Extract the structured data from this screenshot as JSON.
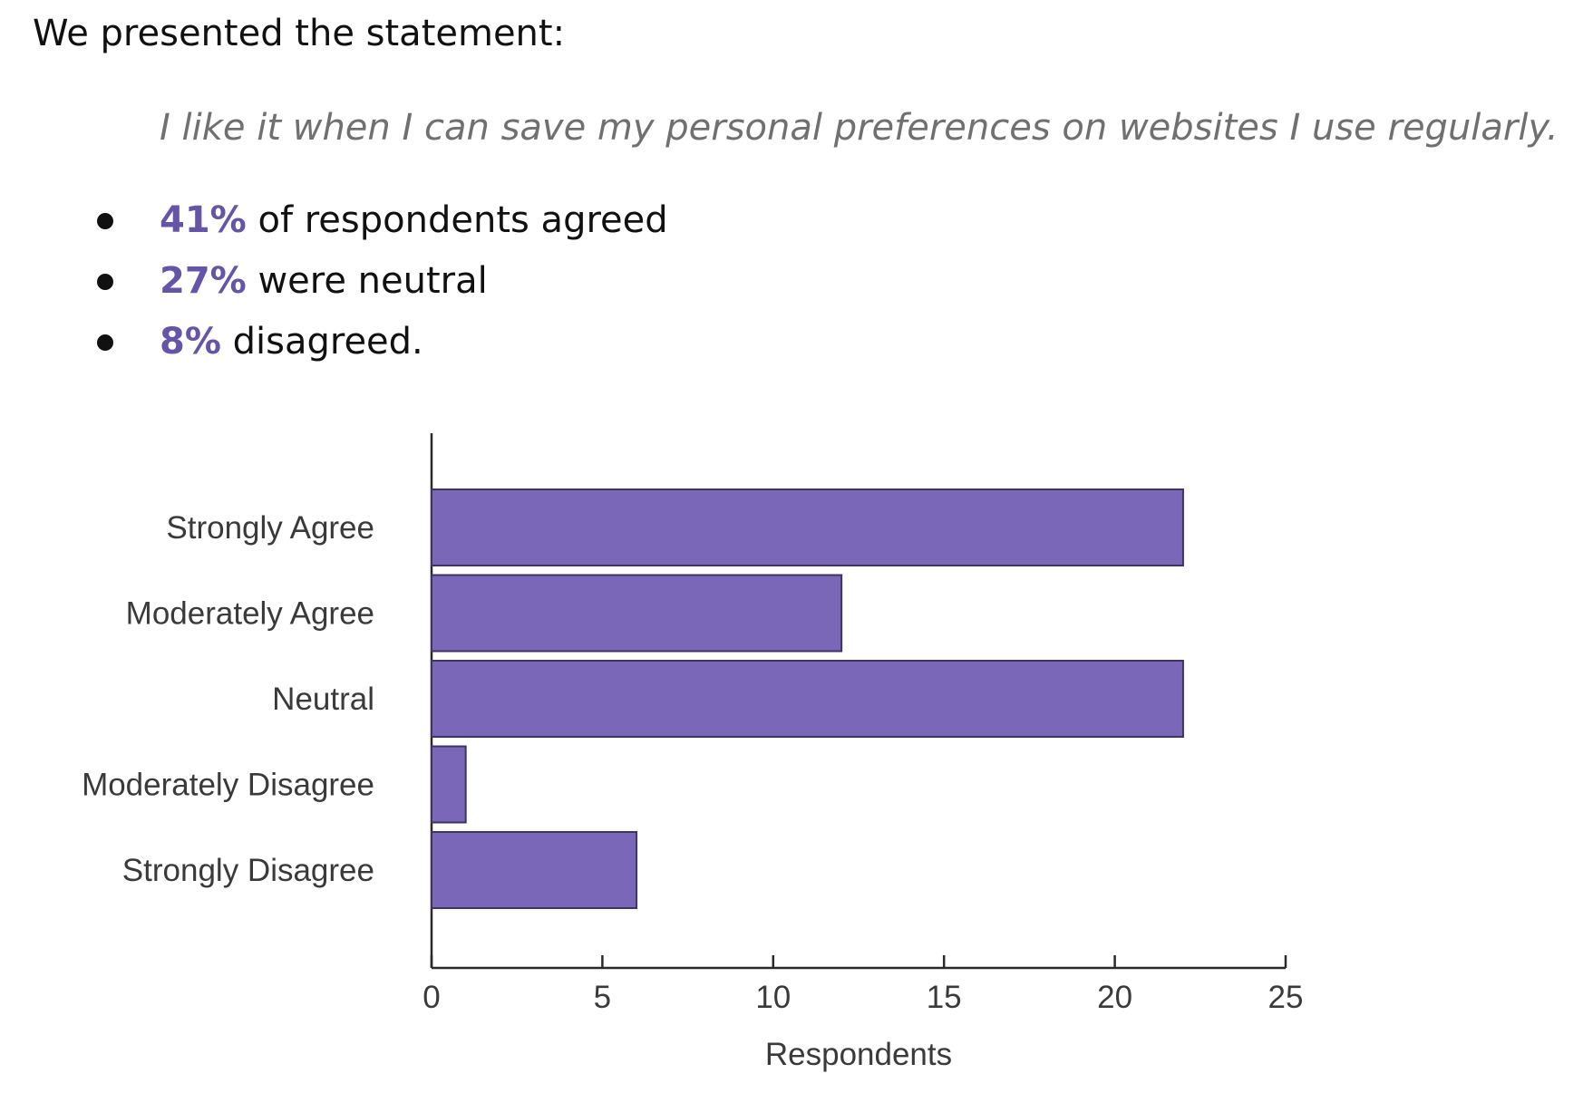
{
  "intro": "We presented the statement:",
  "quote": "I like it when I can save my personal preferences on websites I use regularly.",
  "bullets": [
    {
      "pct": "41%",
      "text": " of respondents agreed"
    },
    {
      "pct": "27%",
      "text": " were neutral"
    },
    {
      "pct": "8%",
      "text": " disagreed."
    }
  ],
  "colors": {
    "accent": "#6554a8",
    "bar_fill": "#7a67b8",
    "bar_stroke": "#3e3363",
    "quote_text": "#707070"
  },
  "chart_data": {
    "type": "bar",
    "orientation": "horizontal",
    "categories": [
      "Strongly Agree",
      "Moderately Agree",
      "Neutral",
      "Moderately Disagree",
      "Strongly Disagree"
    ],
    "values": [
      22,
      12,
      22,
      1,
      6
    ],
    "xlabel": "Respondents",
    "ylabel": "",
    "xlim": [
      0,
      25
    ],
    "xticks": [
      0,
      5,
      10,
      15,
      20,
      25
    ],
    "grid": false,
    "legend": "none"
  }
}
